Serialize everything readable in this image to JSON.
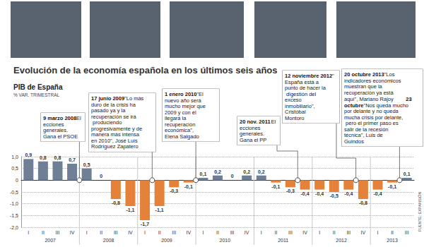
{
  "chart_data": {
    "type": "bar",
    "title": "Evolución de la economía española en los últimos seis años",
    "subtitle": "PIB de España",
    "y_label": "% VAR. TRIMESTRAL",
    "source": "FUENTE: EXPANSIÓN",
    "categories": [
      "I",
      "II",
      "III",
      "IV",
      "I",
      "II",
      "III",
      "IV",
      "I",
      "II",
      "III",
      "IV",
      "I",
      "II",
      "III",
      "IV",
      "I",
      "II",
      "III",
      "IV",
      "I",
      "II",
      "III",
      "IV",
      "I",
      "II",
      "III"
    ],
    "years": [
      "2007",
      "2008",
      "2009",
      "2010",
      "2011",
      "2012",
      "2013"
    ],
    "values": [
      0.9,
      0.8,
      0.8,
      0.7,
      0.5,
      0,
      -0.8,
      -1.1,
      -1.7,
      -1.1,
      -0.3,
      -0.1,
      0.1,
      0.2,
      0,
      0.2,
      0.2,
      -0.1,
      -0.3,
      -0.4,
      -0.4,
      -0.5,
      -0.4,
      -0.8,
      -0.4,
      -0.1,
      0.1
    ],
    "value_labels": [
      "0,9",
      "0,8",
      "0,8",
      "0,7",
      "0,5",
      "0",
      "-0,8",
      "-1,1",
      "-1,7",
      "-1,1",
      "-0,3",
      "-0,1",
      "0,1",
      "0,2",
      "0",
      "0,2",
      "0,2",
      "-0,1",
      "-0,3",
      "-0,4",
      "-0,4",
      "-0,5",
      "-0,4",
      "-0,8",
      "-0,4",
      "-0,1",
      "0,1"
    ],
    "colors": [
      "#6f7f95",
      "#6f7f95",
      "#6f7f95",
      "#6f7f95",
      "#6f7f95",
      "#6f7f95",
      "#e4823a",
      "#e4823a",
      "#e4823a",
      "#e4823a",
      "#e4823a",
      "#e4823a",
      "#6f7f95",
      "#6f7f95",
      "#6f7f95",
      "#6f7f95",
      "#6f7f95",
      "#e4823a",
      "#e4823a",
      "#e4823a",
      "#e4823a",
      "#e4823a",
      "#e4823a",
      "#e4823a",
      "#e4823a",
      "#e4823a",
      "#6f7f95"
    ],
    "ylim": [
      -2,
      1
    ],
    "yticks": [
      {
        "value": -2,
        "label": "-2,0"
      },
      {
        "value": -1.5,
        "label": "-1,5"
      },
      {
        "value": -1,
        "label": "-1,0"
      },
      {
        "value": -0.5,
        "label": "-0,5"
      },
      0,
      {
        "value": 0.5,
        "label": "0,5"
      },
      {
        "value": 1,
        "label": "1,0"
      }
    ],
    "grid": true,
    "data_labels": true,
    "annotations": [
      {
        "year": "2008",
        "quarter": "I",
        "items": [
          {
            "date": "9 marzo 2008",
            "text": "Elecciones generales. Gana el PSOE"
          }
        ]
      },
      {
        "year": "2009",
        "quarter": "II",
        "items": [
          {
            "date": "17 junio 2009",
            "text": "\"Lo más duro de la crisis ha pasado ya y la recuperación se irá produciendo progresivamente y de manera más intensa en 2010\", José Luis Rodríguez Zapatero"
          }
        ]
      },
      {
        "year": "2010",
        "quarter": "I",
        "items": [
          {
            "date": "1 enero 2010",
            "text": "\"El nuevo año será mucho mejor que 2009 y con él llegará la recuperación económica\", Elena Salgado"
          }
        ]
      },
      {
        "year": "2011",
        "quarter": "IV",
        "items": [
          {
            "date": "20 nov. 2011",
            "text": "Elecciones generales. Gana el PP"
          }
        ]
      },
      {
        "year": "2012",
        "quarter": "IV",
        "items": [
          {
            "date": "12 noviembre 2012",
            "text": "\"España está a punto de hacer la digestión del exceso inmobiliario\", Cristóbal Montoro"
          }
        ]
      },
      {
        "year": "2013",
        "quarter": "III",
        "items": [
          {
            "date": "20 octubre 2013",
            "text": "\"Los indicadores económicos muestran que la recuperación ya está aquí\", Mariano Rajoy"
          },
          {
            "date": "23 octubre",
            "text": "\"Nos queda mucho por delante y no queda mucha crisis por delante, pero el primer paso es salir de la recesión técnica\", Luis de Guindos"
          }
        ]
      }
    ]
  }
}
